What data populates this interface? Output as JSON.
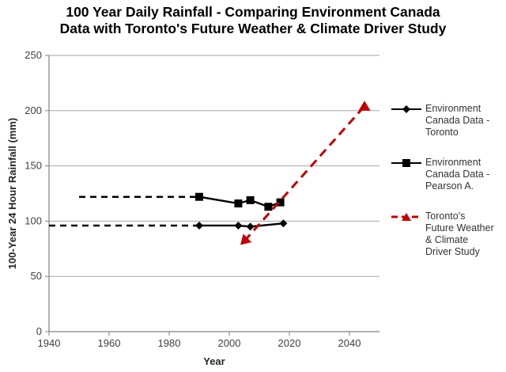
{
  "title": {
    "line1": "100 Year Daily Rainfall - Comparing Environment Canada",
    "line2": "Data with Toronto's Future Weather & Climate Driver Study"
  },
  "colors": {
    "series_black": "#000000",
    "series_red": "#C00000",
    "gridline": "#A6A6A6",
    "axis": "#808080",
    "tick_text": "#404040"
  },
  "legend": {
    "items": [
      {
        "id": "ec-toronto",
        "marker": "diamond",
        "line_style": "solid",
        "color": "#000000",
        "lines": [
          "Environment",
          "Canada Data -",
          "Toronto"
        ]
      },
      {
        "id": "ec-pearson",
        "marker": "square",
        "line_style": "solid",
        "color": "#000000",
        "lines": [
          "Environment",
          "Canada Data -",
          "Pearson A."
        ]
      },
      {
        "id": "future-study",
        "marker": "triangle",
        "line_style": "dashed",
        "color": "#C00000",
        "lines": [
          "Toronto's",
          "Future Weather",
          "& Climate",
          "Driver Study"
        ]
      }
    ]
  },
  "chart_data": {
    "type": "line",
    "title": "100 Year Daily Rainfall - Comparing Environment Canada Data with Toronto's Future Weather & Climate Driver Study",
    "xlabel": "Year",
    "ylabel": "100-Year 24 Hour Rainfall (mm)",
    "xlim": [
      1940,
      2050
    ],
    "ylim": [
      0,
      250
    ],
    "xticks": [
      1940,
      1960,
      1980,
      2000,
      2020,
      2040
    ],
    "yticks": [
      0,
      50,
      100,
      150,
      200,
      250
    ],
    "grid": "horizontal",
    "legend_position": "right",
    "series": [
      {
        "name": "Environment Canada Data - Toronto",
        "marker": "diamond",
        "color": "#000000",
        "line": "solid",
        "points": [
          [
            1990,
            96
          ],
          [
            2003,
            96
          ],
          [
            2007,
            95
          ],
          [
            2018,
            98
          ]
        ]
      },
      {
        "name": "Environment Canada Data - Pearson A.",
        "marker": "square",
        "color": "#000000",
        "line": "solid",
        "points": [
          [
            1990,
            122
          ],
          [
            2003,
            116
          ],
          [
            2007,
            119
          ],
          [
            2013,
            113
          ],
          [
            2017,
            117
          ]
        ]
      },
      {
        "name": "Toronto's Future Weather & Climate Driver Study",
        "marker": "triangle",
        "color": "#C00000",
        "line": "dashed",
        "start_arrow": true,
        "points": [
          [
            2005,
            82
          ],
          [
            2045,
            204
          ]
        ]
      }
    ],
    "annotations": [
      {
        "type": "hline-segment",
        "label": "pearson-historical-dashed",
        "y": 122,
        "x_from": 1950,
        "x_to": 1990,
        "style": "dashed",
        "color": "#000000"
      },
      {
        "type": "hline-segment",
        "label": "toronto-historical-dashed",
        "y": 96,
        "x_from": 1940,
        "x_to": 1990,
        "style": "dashed",
        "color": "#000000"
      }
    ]
  }
}
